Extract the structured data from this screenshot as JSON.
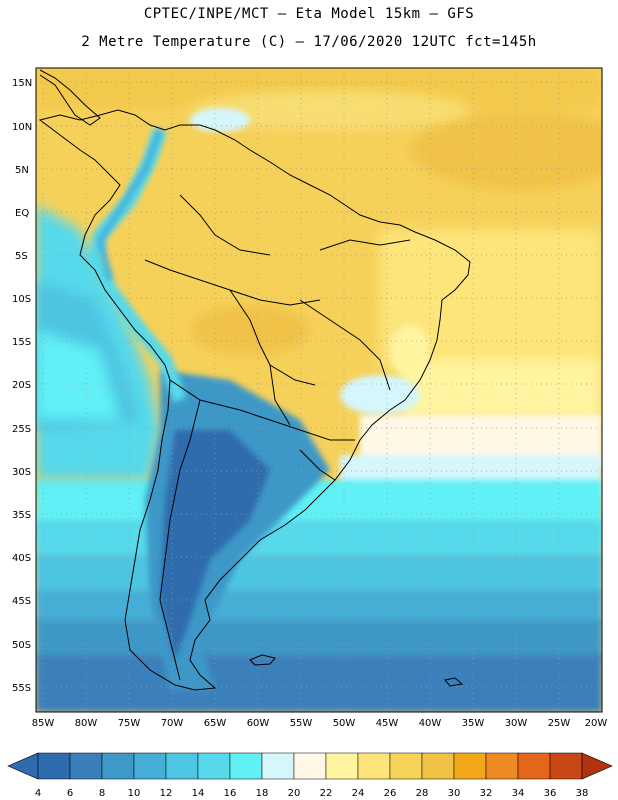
{
  "header": {
    "line1": "CPTEC/INPE/MCT –  Eta Model 15km – GFS",
    "line2": "2 Metre Temperature (C) – 17/06/2020 12UTC fct=145h"
  },
  "map": {
    "lat_labels": [
      "15N",
      "10N",
      "5N",
      "EQ",
      "5S",
      "10S",
      "15S",
      "20S",
      "25S",
      "30S",
      "35S",
      "40S",
      "45S",
      "50S",
      "55S"
    ],
    "lon_labels": [
      "85W",
      "80W",
      "75W",
      "70W",
      "65W",
      "60W",
      "55W",
      "50W",
      "45W",
      "40W",
      "35W",
      "30W",
      "25W",
      "20W"
    ]
  },
  "colorbar": {
    "labels": [
      "4",
      "6",
      "8",
      "10",
      "12",
      "14",
      "16",
      "18",
      "20",
      "22",
      "24",
      "26",
      "28",
      "30",
      "32",
      "34",
      "36",
      "38"
    ],
    "colors": [
      "#2f6cad",
      "#3a7fbb",
      "#3e98c8",
      "#45aed7",
      "#4ec5e2",
      "#57d9eb",
      "#60f0f6",
      "#d5f6fb",
      "#fff8e6",
      "#fff4a0",
      "#fde57a",
      "#f7d35a",
      "#f0c246",
      "#f3a81a",
      "#ee8a22",
      "#e3661a",
      "#c94615"
    ],
    "low_arrow_color": "#2f6cad",
    "high_arrow_color": "#b0320f"
  }
}
